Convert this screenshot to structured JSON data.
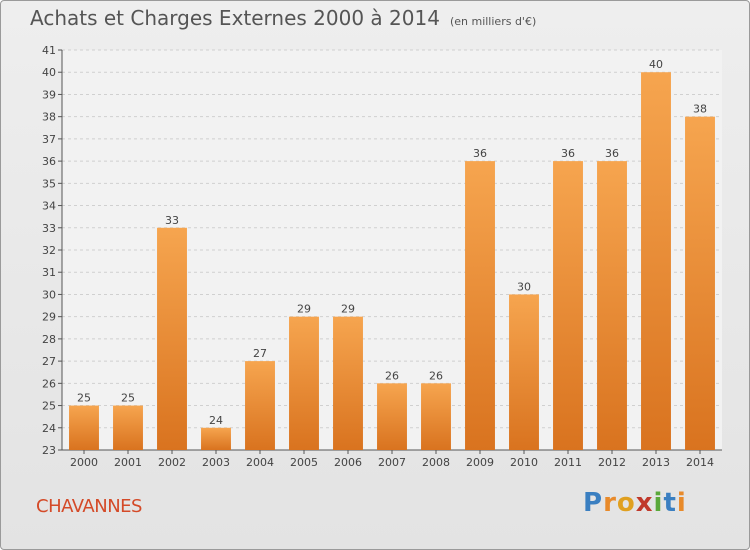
{
  "title": "Achats et Charges Externes 2000 à 2014",
  "unit": "(en milliers d'€)",
  "place": "CHAVANNES",
  "logo": "Proxiti",
  "colors": {
    "bar_top": "#f6a54f",
    "bar_bottom": "#d9731f",
    "grid": "#d0d0d0",
    "axis": "#555555"
  },
  "chart_data": {
    "type": "bar",
    "categories": [
      "2000",
      "2001",
      "2002",
      "2003",
      "2004",
      "2005",
      "2006",
      "2007",
      "2008",
      "2009",
      "2010",
      "2011",
      "2012",
      "2013",
      "2014"
    ],
    "values": [
      25,
      25,
      33,
      24,
      27,
      29,
      29,
      26,
      26,
      36,
      30,
      36,
      36,
      40,
      38
    ],
    "ylim": [
      23,
      41
    ],
    "yticks": [
      23,
      24,
      25,
      26,
      27,
      28,
      29,
      30,
      31,
      32,
      33,
      34,
      35,
      36,
      37,
      38,
      39,
      40,
      41
    ],
    "grid": true
  }
}
